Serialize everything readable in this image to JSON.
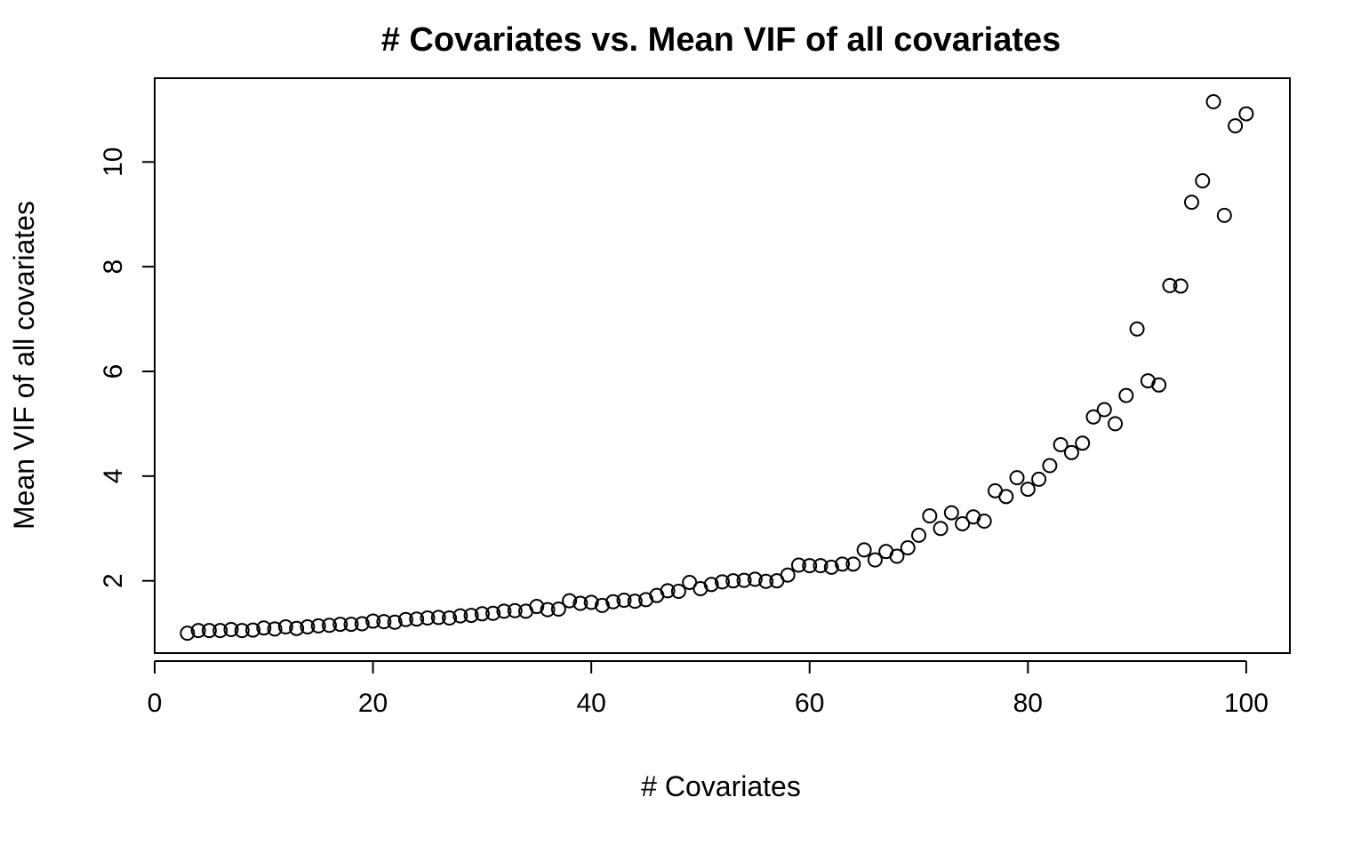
{
  "chart_data": {
    "type": "scatter",
    "title": "# Covariates vs. Mean VIF of all covariates",
    "xlabel": "# Covariates",
    "ylabel": "Mean VIF of all covariates",
    "xlim": [
      0,
      104
    ],
    "ylim": [
      0.62,
      11.6
    ],
    "x_ticks": [
      0,
      20,
      40,
      60,
      80,
      100
    ],
    "y_ticks": [
      2,
      4,
      6,
      8,
      10
    ],
    "grid": false,
    "legend": "none",
    "marker": "open-circle",
    "series": [
      {
        "x": [
          3,
          4,
          5,
          6,
          7,
          8,
          9,
          10,
          11,
          12,
          13,
          14,
          15,
          16,
          17,
          18,
          19,
          20,
          21,
          22,
          23,
          24,
          25,
          26,
          27,
          28,
          29,
          30,
          31,
          32,
          33,
          34,
          35,
          36,
          37,
          38,
          39,
          40,
          41,
          42,
          43,
          44,
          45,
          46,
          47,
          48,
          49,
          50,
          51,
          52,
          53,
          54,
          55,
          56,
          57,
          58,
          59,
          60,
          61,
          62,
          63,
          64,
          65,
          66,
          67,
          68,
          69,
          70,
          71,
          72,
          73,
          74,
          75,
          76,
          77,
          78,
          79,
          80,
          81,
          82,
          83,
          84,
          85,
          86,
          87,
          88,
          89,
          90,
          91,
          92,
          93,
          94,
          95,
          96,
          97,
          98,
          99,
          100
        ],
        "y": [
          1.0,
          1.05,
          1.05,
          1.05,
          1.07,
          1.05,
          1.06,
          1.1,
          1.08,
          1.12,
          1.09,
          1.12,
          1.14,
          1.15,
          1.17,
          1.17,
          1.18,
          1.23,
          1.22,
          1.21,
          1.26,
          1.27,
          1.29,
          1.3,
          1.29,
          1.33,
          1.34,
          1.37,
          1.38,
          1.42,
          1.43,
          1.42,
          1.51,
          1.45,
          1.46,
          1.62,
          1.57,
          1.59,
          1.53,
          1.6,
          1.63,
          1.61,
          1.64,
          1.72,
          1.81,
          1.8,
          1.97,
          1.85,
          1.93,
          1.98,
          2.0,
          2.01,
          2.03,
          1.99,
          2.0,
          2.11,
          2.3,
          2.29,
          2.29,
          2.26,
          2.32,
          2.32,
          2.59,
          2.4,
          2.56,
          2.47,
          2.63,
          2.87,
          3.24,
          3.0,
          3.3,
          3.09,
          3.22,
          3.14,
          3.72,
          3.61,
          3.97,
          3.75,
          3.94,
          4.2,
          4.6,
          4.45,
          4.63,
          5.13,
          5.27,
          5.0,
          5.54,
          6.81,
          5.82,
          5.74,
          7.64,
          7.63,
          9.23,
          9.64,
          11.15,
          8.98,
          10.69,
          10.92
        ]
      }
    ]
  }
}
